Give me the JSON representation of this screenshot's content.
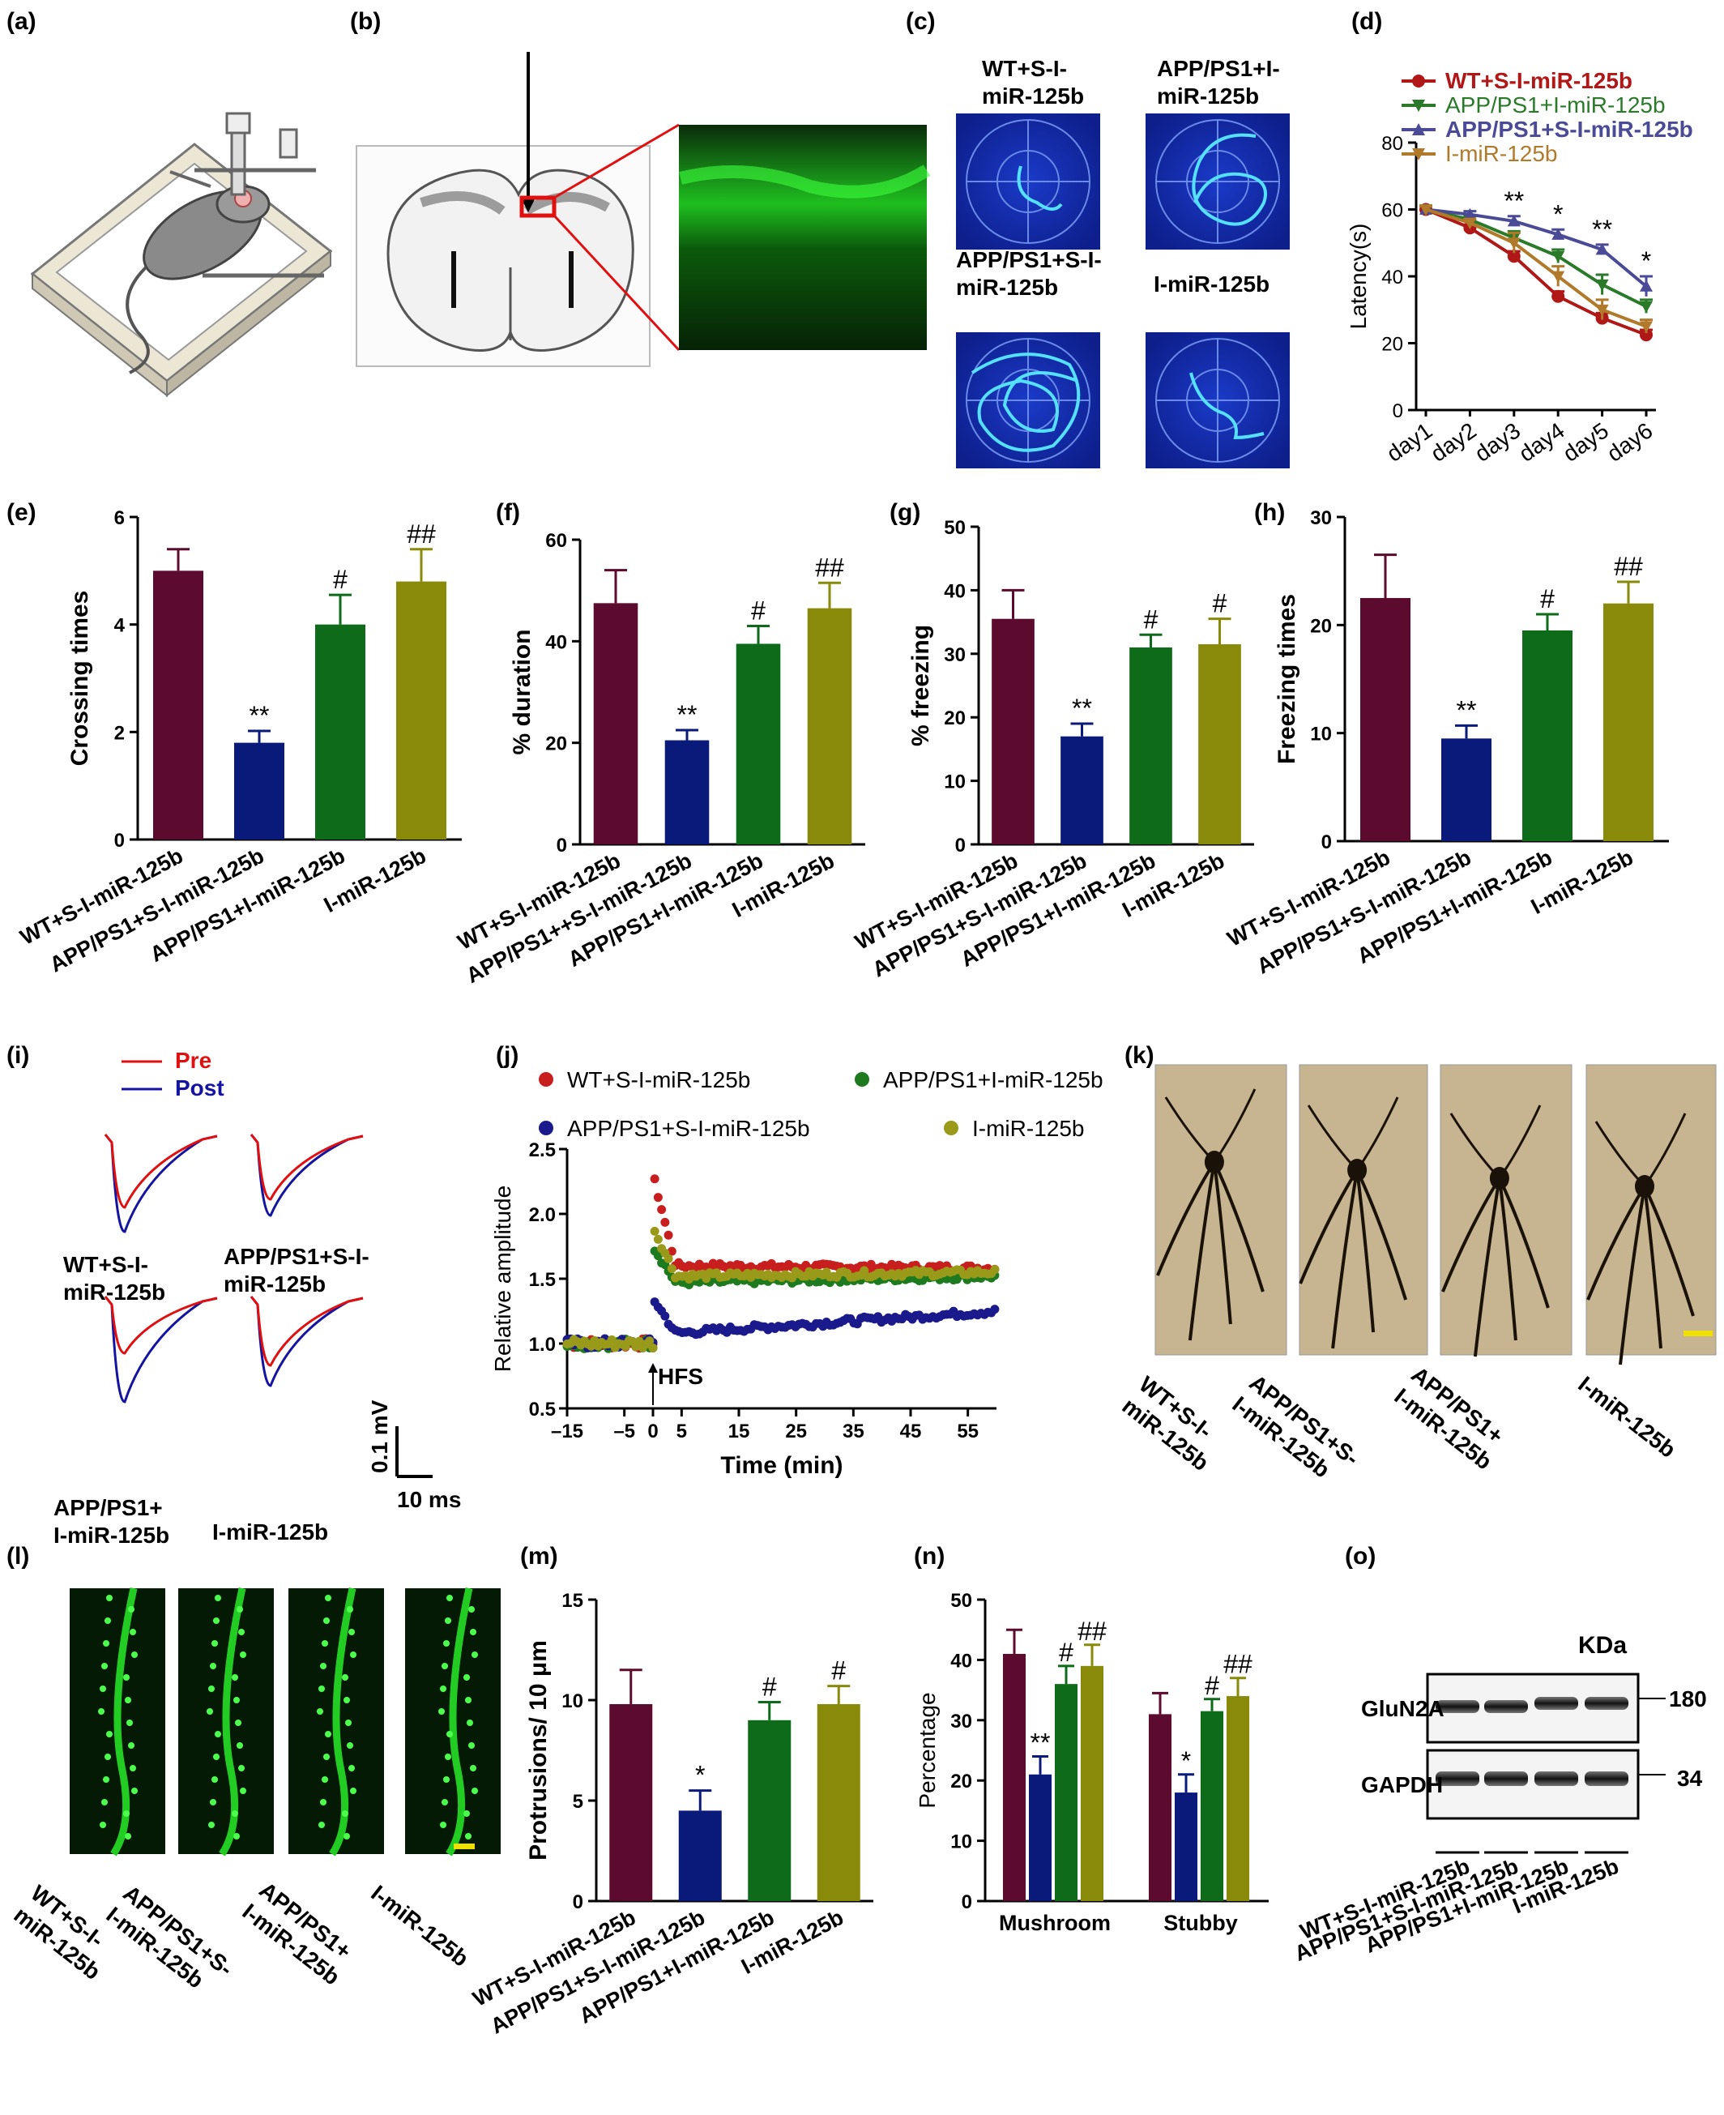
{
  "panel_letters": [
    "(a)",
    "(b)",
    "(c)",
    "(d)",
    "(e)",
    "(f)",
    "(g)",
    "(h)",
    "(i)",
    "(j)",
    "(k)",
    "(l)",
    "(m)",
    "(n)",
    "(o)"
  ],
  "colors": {
    "wt": "#5c0a2e",
    "s_app": "#0a1a7a",
    "i_app": "#0d6b1a",
    "i_only": "#8a8a0a",
    "line_wt": "#b01818",
    "line_iapp": "#2a7a2a",
    "line_sapp": "#4a4a96",
    "line_i": "#b07a2a",
    "green_img": "#22cc22",
    "scatter_wt": "#c81e1e",
    "scatter_iapp": "#1e7a1e",
    "scatter_sapp": "#1a1a8c",
    "scatter_i": "#9a9a1a",
    "trace_pre": "#e01010",
    "trace_post": "#1414a0",
    "golgi_bg": "#c7b491",
    "highlight": "#e01010",
    "scale": "#f0e000"
  },
  "maze_labels": [
    "WT+S-I-\nmiR-125b",
    "APP/PS1+I-\nmiR-125b",
    "APP/PS1+S-I-\nmiR-125b",
    "I-miR-125b"
  ],
  "group_labels": [
    "WT+S-I-miR-125b",
    "APP/PS1+S-I-miR-125b",
    "APP/PS1+I-miR-125b",
    "I-miR-125b"
  ],
  "group_labels_f": [
    "WT+S-I-miR-125b",
    "APP/PS1++S-I-miR-125b",
    "APP/PS1+I-miR-125b",
    "I-miR-125b"
  ],
  "trace_legend": {
    "pre": "Pre",
    "post": "Post"
  },
  "trace_labels": [
    "WT+S-I-\nmiR-125b",
    "APP/PS1+S-I-\nmiR-125b",
    "APP/PS1+\nI-miR-125b",
    "I-miR-125b"
  ],
  "trace_scale": {
    "v": "0.1 mV",
    "t": "10 ms"
  },
  "golgi_labels": [
    "WT+S-I-\nmiR-125b",
    "APP/PS1+S-\nI-miR-125b",
    "APP/PS1+\nI-miR-125b",
    "I-miR-125b"
  ],
  "spine_labels": [
    "WT+S-I-\nmiR-125b",
    "APP/PS1+S-\nI-miR-125b",
    "APP/PS1+\nI-miR-125b",
    "I-miR-125b"
  ],
  "blot": {
    "unit": "KDa",
    "bands": [
      {
        "name": "GluN2A",
        "kda": "180"
      },
      {
        "name": "GAPDH",
        "kda": "34"
      }
    ]
  },
  "chart_data": [
    {
      "panel": "(d)",
      "type": "line",
      "x": [
        "day1",
        "day2",
        "day3",
        "day4",
        "day5",
        "day6"
      ],
      "ylabel": "Latency(s)",
      "ylim": [
        0,
        80
      ],
      "yticks": [
        0,
        20,
        40,
        60,
        80
      ],
      "legend_position": "top-right",
      "series": [
        {
          "name": "WT+S-I-miR-125b",
          "values": [
            60,
            54.5,
            46,
            34,
            27.5,
            22.5
          ],
          "err": [
            1,
            1,
            1.5,
            1.5,
            1.5,
            1.5
          ],
          "marker": "circle",
          "color": "#b01818"
        },
        {
          "name": "APP/PS1+I-miR-125b",
          "values": [
            60,
            57,
            51.5,
            46,
            37.5,
            31
          ],
          "err": [
            1,
            1,
            2,
            2,
            3,
            2
          ],
          "marker": "tri-down",
          "color": "#2a7a2a"
        },
        {
          "name": "APP/PS1+S-I-miR-125b",
          "values": [
            60,
            58.5,
            56.5,
            52.5,
            48,
            37
          ],
          "err": [
            1,
            1,
            1.5,
            1.5,
            1.5,
            3
          ],
          "marker": "tri-up",
          "color": "#4a4a96"
        },
        {
          "name": "I-miR-125b",
          "values": [
            60,
            56,
            50,
            40,
            30,
            25
          ],
          "err": [
            1,
            1,
            3,
            3,
            3,
            2
          ],
          "marker": "tri-down",
          "color": "#b07a2a"
        }
      ],
      "annotations": [
        {
          "x": "day3",
          "text": "**"
        },
        {
          "x": "day4",
          "text": "*"
        },
        {
          "x": "day5",
          "text": "**"
        },
        {
          "x": "day6",
          "text": "*"
        }
      ]
    },
    {
      "panel": "(e)",
      "type": "bar",
      "ylabel": "Crossing times",
      "ylim": [
        0,
        6
      ],
      "yticks": [
        0,
        2,
        4,
        6
      ],
      "values": [
        5.0,
        1.8,
        4.0,
        4.8
      ],
      "err": [
        0.4,
        0.22,
        0.55,
        0.6
      ],
      "annotations": [
        "",
        "**",
        "#",
        "##"
      ]
    },
    {
      "panel": "(f)",
      "type": "bar",
      "ylabel": "% duration",
      "ylim": [
        0,
        60
      ],
      "yticks": [
        0,
        20,
        40,
        60
      ],
      "values": [
        47.5,
        20.5,
        39.5,
        46.5
      ],
      "err": [
        6.5,
        2,
        3.5,
        5
      ],
      "annotations": [
        "",
        "**",
        "#",
        "##"
      ]
    },
    {
      "panel": "(g)",
      "type": "bar",
      "ylabel": "% freezing",
      "ylim": [
        0,
        50
      ],
      "yticks": [
        0,
        10,
        20,
        30,
        40,
        50
      ],
      "values": [
        35.5,
        17,
        31,
        31.5
      ],
      "err": [
        4.5,
        2,
        2,
        4
      ],
      "annotations": [
        "",
        "**",
        "#",
        "#"
      ]
    },
    {
      "panel": "(h)",
      "type": "bar",
      "ylabel": "Freezing times",
      "ylim": [
        0,
        30
      ],
      "yticks": [
        0,
        10,
        20,
        30
      ],
      "values": [
        22.5,
        9.5,
        19.5,
        22
      ],
      "err": [
        4,
        1.2,
        1.5,
        2
      ],
      "annotations": [
        "",
        "**",
        "#",
        "##"
      ]
    },
    {
      "panel": "(j)",
      "type": "scatter",
      "xlabel": "Time (min)",
      "ylabel": "Relative amplitude",
      "xlim": [
        -15,
        60
      ],
      "xticks": [
        -15,
        -5,
        0,
        5,
        15,
        25,
        35,
        45,
        55
      ],
      "ylim": [
        0.5,
        2.5
      ],
      "yticks": [
        0.5,
        1.0,
        1.5,
        2.0,
        2.5
      ],
      "arrow_label": "HFS",
      "series": [
        {
          "name": "WT+S-I-miR-125b",
          "baseline": 1.0,
          "peak": 2.3,
          "plateau": 1.6,
          "end": 1.58,
          "color": "#c81e1e"
        },
        {
          "name": "APP/PS1+I-miR-125b",
          "baseline": 1.0,
          "peak": 1.75,
          "plateau": 1.47,
          "end": 1.52,
          "color": "#1e7a1e"
        },
        {
          "name": "APP/PS1+S-I-miR-125b",
          "baseline": 1.0,
          "peak": 1.35,
          "plateau": 1.08,
          "end": 1.25,
          "color": "#1a1a8c"
        },
        {
          "name": "I-miR-125b",
          "baseline": 1.0,
          "peak": 1.9,
          "plateau": 1.52,
          "end": 1.55,
          "color": "#9a9a1a"
        }
      ]
    },
    {
      "panel": "(m)",
      "type": "bar",
      "ylabel": "Protrusions/ 10 μm",
      "ylim": [
        0,
        15
      ],
      "yticks": [
        0,
        5,
        10,
        15
      ],
      "values": [
        9.8,
        4.5,
        9.0,
        9.8
      ],
      "err": [
        1.7,
        1.0,
        0.9,
        0.9
      ],
      "annotations": [
        "",
        "*",
        "#",
        "#"
      ]
    },
    {
      "panel": "(n)",
      "type": "bar",
      "ylabel": "Percentage",
      "ylim": [
        0,
        50
      ],
      "yticks": [
        0,
        10,
        20,
        30,
        40,
        50
      ],
      "categories": [
        "Mushroom",
        "Stubby"
      ],
      "series": [
        {
          "name": "WT+S-I-miR-125b",
          "values": [
            41,
            31
          ],
          "err": [
            4,
            3.5
          ]
        },
        {
          "name": "APP/PS1+S-I-miR-125b",
          "values": [
            21,
            18
          ],
          "err": [
            3,
            3
          ]
        },
        {
          "name": "APP/PS1+I-miR-125b",
          "values": [
            36,
            31.5
          ],
          "err": [
            3,
            2
          ]
        },
        {
          "name": "I-miR-125b",
          "values": [
            39,
            34
          ],
          "err": [
            3.5,
            3
          ]
        }
      ],
      "annotations": [
        [
          "",
          "**",
          "#",
          "##"
        ],
        [
          "",
          "*",
          "#",
          "##"
        ]
      ]
    }
  ]
}
